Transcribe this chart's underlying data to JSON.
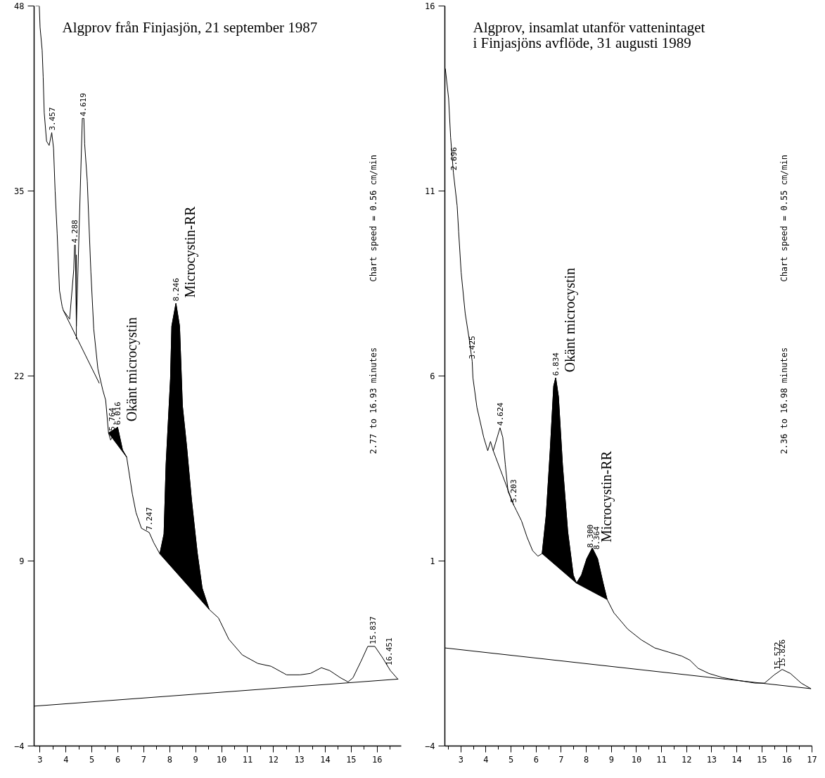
{
  "chart_data": [
    {
      "type": "line",
      "title": "Algprov från Finjasjön, 21 september 1987",
      "xlim": [
        2.77,
        16.93
      ],
      "ylim": [
        -4,
        48
      ],
      "xticks": [
        3,
        4,
        5,
        6,
        7,
        8,
        9,
        10,
        11,
        12,
        13,
        14,
        15,
        16
      ],
      "yticks": [
        -4,
        9,
        22,
        35,
        48
      ],
      "grid": false,
      "series": [
        {
          "color": "#000000",
          "x": [
            2.84,
            2.97,
            3.0,
            3.08,
            3.12,
            3.16,
            3.25,
            3.35,
            3.45,
            3.52,
            3.58,
            3.66,
            3.75,
            3.85,
            3.9,
            4.14,
            4.3,
            4.33,
            4.36,
            4.4,
            4.5,
            4.63,
            4.69,
            4.72,
            4.82,
            4.96,
            5.07,
            5.23,
            5.42,
            5.53,
            5.64,
            5.72,
            5.99,
            6.18,
            6.34,
            6.45,
            6.56,
            6.7,
            6.91,
            7.21,
            7.38,
            7.62,
            7.78,
            7.86,
            8.03,
            8.08,
            8.24,
            8.38,
            8.49,
            8.65,
            8.84,
            9.06,
            9.25,
            9.52,
            9.88,
            10.28,
            10.8,
            11.4,
            11.91,
            12.51,
            13.03,
            13.43,
            13.85,
            14.17,
            14.58,
            14.88,
            15.07,
            15.39,
            15.64,
            15.91,
            16.21,
            16.51,
            16.8
          ],
          "values": [
            48,
            48,
            46.5,
            44.9,
            43,
            40.5,
            38.5,
            38.2,
            39.1,
            38.0,
            35,
            32,
            28,
            26.9,
            26.6,
            26.0,
            29.5,
            31.2,
            31.2,
            25.5,
            31.9,
            40.1,
            40.1,
            38.3,
            35.7,
            29.3,
            25.3,
            22.5,
            21.0,
            20.3,
            18.0,
            17.5,
            18.4,
            16.8,
            16.3,
            15.0,
            13.7,
            12.4,
            11.3,
            11.0,
            10.3,
            9.5,
            10.9,
            15.8,
            21.8,
            25.5,
            27.1,
            25.5,
            19.9,
            17.1,
            13.3,
            9.6,
            7.1,
            5.6,
            5.0,
            3.5,
            2.4,
            1.8,
            1.6,
            1.0,
            1.0,
            1.1,
            1.5,
            1.3,
            0.8,
            0.5,
            0.8,
            2.0,
            3.0,
            3.0,
            2.2,
            1.3,
            0.7
          ]
        },
        {
          "color": "#000000",
          "x": [
            3.9,
            5.28
          ],
          "values": [
            26.6,
            21.5
          ]
        },
        {
          "color": "#000000",
          "x": [
            4.4,
            4.4
          ],
          "values": [
            30.5,
            24.6
          ]
        },
        {
          "color": "#000000",
          "x": [
            2.77,
            16.8
          ],
          "values": [
            -1.2,
            0.7
          ]
        },
        {
          "type": "area",
          "name": "Okänt microcystin",
          "color": "#000000",
          "x": [
            5.64,
            5.99,
            6.18,
            6.34
          ],
          "values": [
            18.0,
            18.4,
            16.8,
            16.3
          ]
        },
        {
          "type": "area",
          "name": "Microcystin-RR",
          "color": "#000000",
          "x": [
            7.62,
            7.78,
            7.86,
            8.03,
            8.08,
            8.24,
            8.38,
            8.49,
            8.65,
            8.84,
            9.06,
            9.25,
            9.52
          ],
          "values": [
            9.5,
            10.9,
            15.8,
            21.8,
            25.5,
            27.1,
            25.5,
            19.9,
            17.1,
            13.3,
            9.6,
            7.1,
            5.6
          ]
        }
      ],
      "annotations": [
        {
          "text": "3.457",
          "x": 3.45,
          "y": 39.1
        },
        {
          "text": "4.288",
          "x": 4.33,
          "y": 31.2
        },
        {
          "text": "4.619",
          "x": 4.66,
          "y": 40.1
        },
        {
          "text": "5.764",
          "x": 5.76,
          "y": 18.0
        },
        {
          "text": "6.016",
          "x": 5.99,
          "y": 18.4
        },
        {
          "text": "7.247",
          "x": 7.21,
          "y": 11.0
        },
        {
          "text": "8.246",
          "x": 8.24,
          "y": 27.1
        },
        {
          "text": "15.837",
          "x": 15.84,
          "y": 3.0
        },
        {
          "text": "16.451",
          "x": 16.45,
          "y": 1.5
        },
        "Chart speed =   0.56 cm/min",
        "2.77 to  16.93 minutes"
      ]
    },
    {
      "type": "line",
      "title": "Algprov, insamlat utanför vattenintaget\ni Finjasjöns avflöde, 31 augusti 1989",
      "xlim": [
        2.36,
        17
      ],
      "ylim": [
        -4,
        16
      ],
      "xticks": [
        3,
        4,
        5,
        6,
        7,
        8,
        9,
        10,
        11,
        12,
        13,
        14,
        15,
        16,
        17
      ],
      "yticks": [
        -4,
        1,
        6,
        11,
        16
      ],
      "grid": false,
      "series": [
        {
          "color": "#000000",
          "x": [
            2.38,
            2.51,
            2.59,
            2.7,
            2.85,
            2.91,
            3.01,
            3.17,
            3.33,
            3.45,
            3.48,
            3.64,
            3.91,
            4.07,
            4.18,
            4.29,
            4.56,
            4.67,
            4.77,
            4.88,
            5.1,
            5.21,
            5.42,
            5.64,
            5.86,
            6.07,
            6.24,
            6.4,
            6.56,
            6.7,
            6.78,
            6.89,
            7.05,
            7.26,
            7.48,
            7.61,
            7.81,
            8.02,
            8.24,
            8.45,
            8.67,
            8.83,
            9.1,
            9.65,
            10.19,
            10.73,
            11.27,
            11.81,
            12.13,
            12.46,
            12.89,
            13.43,
            14.08,
            14.73,
            15.11,
            15.49,
            15.81,
            16.14,
            16.57,
            16.95
          ],
          "values": [
            14.3,
            13.5,
            12.45,
            11.5,
            10.6,
            9.9,
            8.8,
            7.7,
            7.0,
            6.4,
            5.95,
            5.15,
            4.34,
            3.98,
            4.23,
            3.98,
            4.6,
            4.34,
            3.61,
            2.88,
            2.52,
            2.37,
            2.08,
            1.64,
            1.28,
            1.13,
            1.2,
            2.23,
            3.98,
            5.73,
            5.95,
            5.44,
            3.61,
            1.79,
            0.62,
            0.4,
            0.62,
            1.06,
            1.35,
            1.06,
            0.4,
            -0.04,
            -0.4,
            -0.84,
            -1.13,
            -1.35,
            -1.46,
            -1.57,
            -1.68,
            -1.9,
            -2.04,
            -2.15,
            -2.23,
            -2.3,
            -2.3,
            -2.08,
            -1.93,
            -2.04,
            -2.3,
            -2.45
          ]
        },
        {
          "color": "#000000",
          "x": [
            4.29,
            5.1
          ],
          "values": [
            3.98,
            2.52
          ]
        },
        {
          "color": "#000000",
          "x": [
            2.37,
            16.95
          ],
          "values": [
            -1.35,
            -2.45
          ]
        },
        {
          "type": "area",
          "name": "Okänt microcystin",
          "color": "#000000",
          "x": [
            6.24,
            6.4,
            6.56,
            6.7,
            6.78,
            6.89,
            7.05,
            7.26,
            7.48,
            7.61
          ],
          "values": [
            1.2,
            2.23,
            3.98,
            5.73,
            5.95,
            5.44,
            3.61,
            1.79,
            0.62,
            0.4
          ]
        },
        {
          "type": "area",
          "name": "Microcystin-RR",
          "color": "#000000",
          "x": [
            7.61,
            7.81,
            8.02,
            8.24,
            8.45,
            8.67,
            8.83
          ],
          "values": [
            0.4,
            0.62,
            1.06,
            1.35,
            1.06,
            0.4,
            -0.04
          ]
        }
      ],
      "annotations": [
        {
          "text": "2.696",
          "x": 2.7,
          "y": 11.5
        },
        {
          "text": "3.425",
          "x": 3.45,
          "y": 6.4
        },
        {
          "text": "4.624",
          "x": 4.56,
          "y": 4.6
        },
        {
          "text": "5.203",
          "x": 5.1,
          "y": 2.52
        },
        {
          "text": "6.834",
          "x": 6.78,
          "y": 5.95
        },
        {
          "text": "8.300",
          "x": 8.16,
          "y": 1.3
        },
        {
          "text": "8.364",
          "x": 8.4,
          "y": 1.25
        },
        {
          "text": "15.572",
          "x": 15.6,
          "y": -2.0
        },
        {
          "text": "15.826",
          "x": 15.81,
          "y": -1.93
        },
        "Chart speed =   0.55 cm/min",
        "2.36 to  16.98 minutes"
      ]
    }
  ]
}
